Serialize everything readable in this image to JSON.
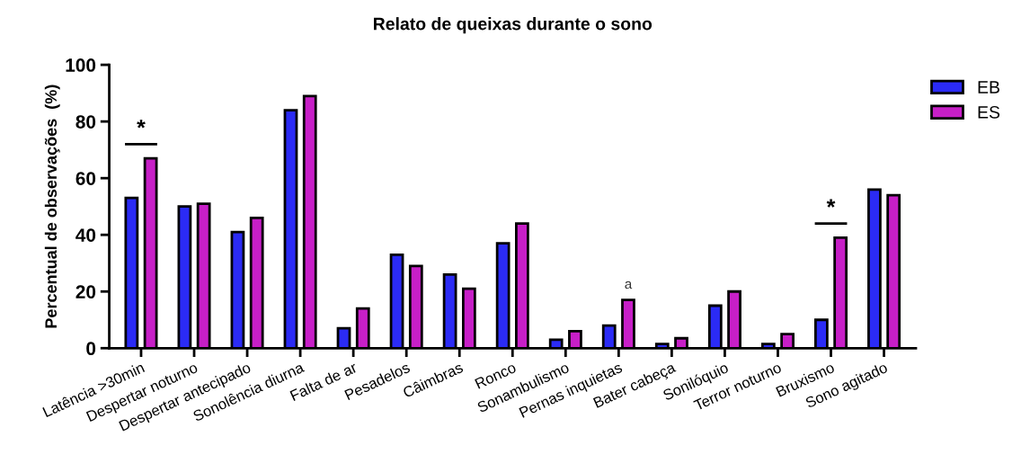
{
  "chart_data": {
    "type": "bar",
    "title": "Relato de queixas durante o sono",
    "ylabel": "Percentual de observações  (%)",
    "categories": [
      "Latência >30min",
      "Despertar noturno",
      "Despertar antecipado",
      "Sonolência diurna",
      "Falta de ar",
      "Pesadelos",
      "Câimbras",
      "Ronco",
      "Sonambulismo",
      "Pernas inquietas",
      "Bater cabeça",
      "Sonilóquio",
      "Terror noturno",
      "Bruxismo",
      "Sono agitado"
    ],
    "series": [
      {
        "name": "EB",
        "color": "#2b2bf5",
        "values": [
          53,
          50,
          41,
          84,
          7,
          33,
          26,
          37,
          3,
          8,
          1.5,
          15,
          1.5,
          10,
          56
        ]
      },
      {
        "name": "ES",
        "color": "#c71fc7",
        "values": [
          67,
          51,
          46,
          89,
          14,
          29,
          21,
          44,
          6,
          17,
          3.5,
          20,
          5,
          39,
          54
        ]
      }
    ],
    "ylim": [
      0,
      100
    ],
    "yticks": [
      0,
      20,
      40,
      60,
      80,
      100
    ],
    "grid": false,
    "legend": "top right",
    "annotations": [
      "*",
      "a",
      "*"
    ]
  }
}
